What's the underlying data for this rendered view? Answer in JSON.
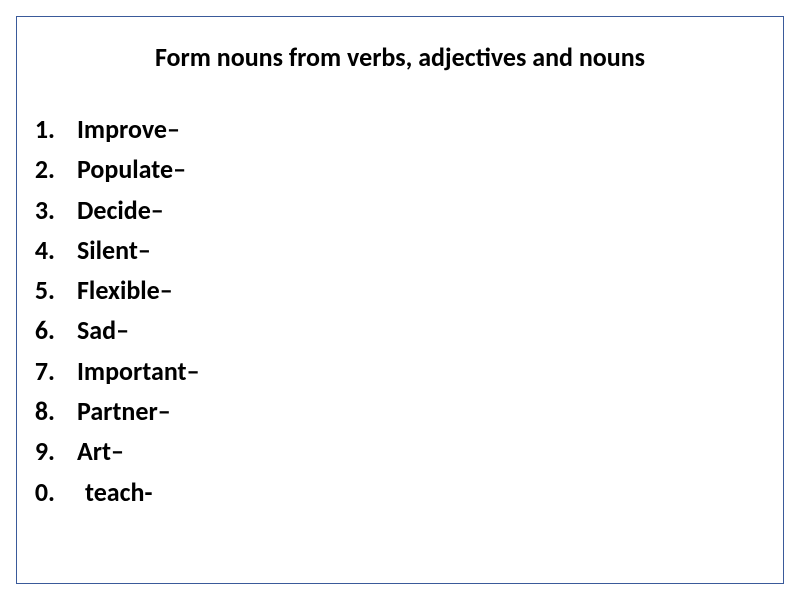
{
  "title": "Form nouns from verbs, adjectives and nouns",
  "items": [
    {
      "word": "Improve",
      "separator": " –"
    },
    {
      "word": "Populate",
      "separator": " –"
    },
    {
      "word": "Decide",
      "separator": " –"
    },
    {
      "word": "Silent",
      "separator": " –"
    },
    {
      "word": "Flexible",
      "separator": " –"
    },
    {
      "word": "Sad",
      "separator": " –"
    },
    {
      "word": "Important",
      "separator": " –"
    },
    {
      "word": "Partner",
      "separator": " –"
    },
    {
      "word": "Art",
      "separator": " –"
    },
    {
      "word": "teach",
      "separator": " -"
    }
  ],
  "style": {
    "border_color": "#3a5a9a",
    "background_color": "#ffffff",
    "title_fontsize": 26,
    "item_fontsize": 26,
    "font_weight": "bold",
    "text_color": "#000000"
  }
}
